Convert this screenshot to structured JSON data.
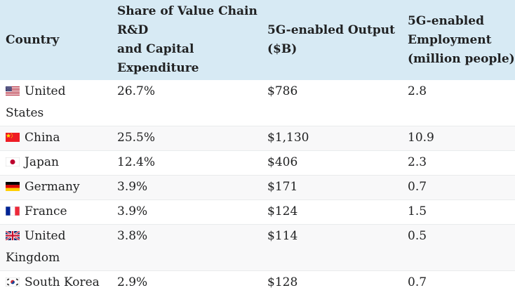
{
  "page": {
    "background": "#ffffff"
  },
  "table": {
    "header_bg": "#d7eaf4",
    "stripe_bg": "#f8f8f9",
    "border_color": "#e9ebec",
    "text_color": "#202122",
    "headers": [
      {
        "id": "country",
        "text": "Country",
        "lines": [
          "Country"
        ]
      },
      {
        "id": "share",
        "text": "Share of Value Chain R&D and Capital Expenditure",
        "lines": [
          "Share of Value Chain",
          "R&D",
          "and Capital",
          "Expenditure"
        ]
      },
      {
        "id": "output",
        "text": "5G-enabled Output ($B)",
        "lines": [
          "5G-enabled Output",
          "($B)"
        ]
      },
      {
        "id": "employment",
        "text": "5G-enabled Employment (million people)",
        "lines": [
          "5G-enabled",
          "Employment",
          "(million people)"
        ]
      }
    ],
    "rows": [
      {
        "flag_icon": "us-flag-icon",
        "country": "United States",
        "country_lines": [
          "United",
          "States"
        ],
        "share": "26.7%",
        "output": "$786",
        "employment": "2.8"
      },
      {
        "flag_icon": "cn-flag-icon",
        "country": "China",
        "country_lines": [
          "China"
        ],
        "share": "25.5%",
        "output": "$1,130",
        "employment": "10.9"
      },
      {
        "flag_icon": "jp-flag-icon",
        "country": "Japan",
        "country_lines": [
          "Japan"
        ],
        "share": "12.4%",
        "output": "$406",
        "employment": "2.3"
      },
      {
        "flag_icon": "de-flag-icon",
        "country": "Germany",
        "country_lines": [
          "Germany"
        ],
        "share": "3.9%",
        "output": "$171",
        "employment": "0.7"
      },
      {
        "flag_icon": "fr-flag-icon",
        "country": "France",
        "country_lines": [
          "France"
        ],
        "share": "3.9%",
        "output": "$124",
        "employment": "1.5"
      },
      {
        "flag_icon": "gb-flag-icon",
        "country": "United Kingdom",
        "country_lines": [
          "United",
          "Kingdom"
        ],
        "share": "3.8%",
        "output": "$114",
        "employment": "0.5"
      },
      {
        "flag_icon": "kr-flag-icon",
        "country": "South Korea",
        "country_lines": [
          "South Korea"
        ],
        "share": "2.9%",
        "output": "$128",
        "employment": "0.7"
      }
    ]
  },
  "chart_data": {
    "type": "table",
    "columns": [
      "Country",
      "Share of Value Chain R&D and Capital Expenditure",
      "5G-enabled Output ($B)",
      "5G-enabled Employment (million people)"
    ],
    "rows": [
      {
        "country": "United States",
        "share_value_chain_rd_capex_pct": 26.7,
        "output_usd_billion": 786,
        "employment_million_people": 2.8
      },
      {
        "country": "China",
        "share_value_chain_rd_capex_pct": 25.5,
        "output_usd_billion": 1130,
        "employment_million_people": 10.9
      },
      {
        "country": "Japan",
        "share_value_chain_rd_capex_pct": 12.4,
        "output_usd_billion": 406,
        "employment_million_people": 2.3
      },
      {
        "country": "Germany",
        "share_value_chain_rd_capex_pct": 3.9,
        "output_usd_billion": 171,
        "employment_million_people": 0.7
      },
      {
        "country": "France",
        "share_value_chain_rd_capex_pct": 3.9,
        "output_usd_billion": 124,
        "employment_million_people": 1.5
      },
      {
        "country": "United Kingdom",
        "share_value_chain_rd_capex_pct": 3.8,
        "output_usd_billion": 114,
        "employment_million_people": 0.5
      },
      {
        "country": "South Korea",
        "share_value_chain_rd_capex_pct": 2.9,
        "output_usd_billion": 128,
        "employment_million_people": 0.7
      }
    ]
  }
}
